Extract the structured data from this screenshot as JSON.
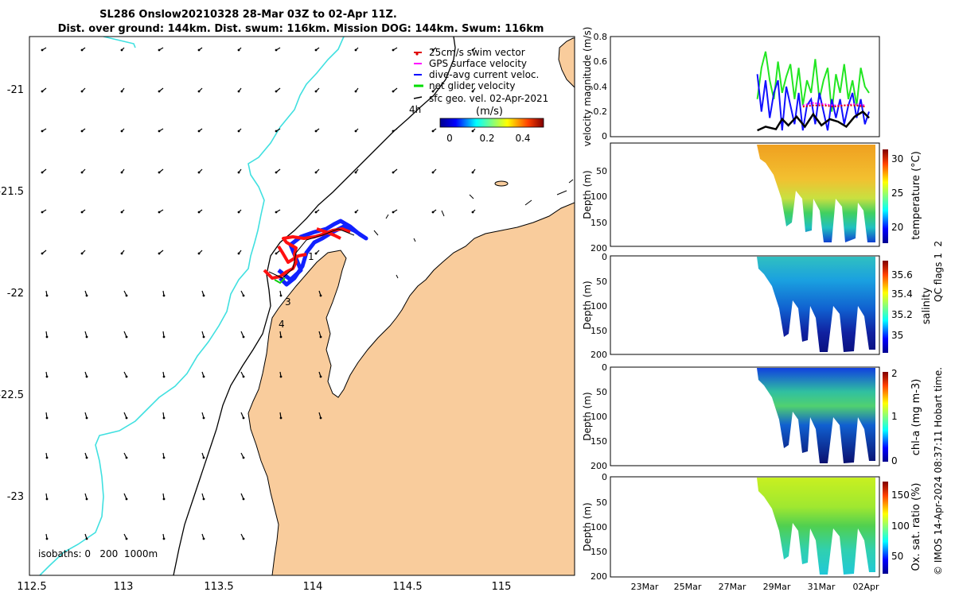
{
  "title": {
    "line1": "SL286 Onslow20210328 28-Mar 03Z to 02-Apr 11Z.",
    "line2": "Dist. over ground: 144km. Dist. swum: 116km. Mission DOG: 144km. Swum: 116km"
  },
  "map": {
    "xticks": [
      "112.5",
      "113",
      "113.5",
      "114",
      "114.5",
      "115"
    ],
    "yticks": [
      "-21",
      "-21.5",
      "-22",
      "-22.5",
      "-23"
    ],
    "legend": [
      {
        "label": "25cm/s swim vector",
        "color": "#e00000"
      },
      {
        "label": "GPS surface velocity",
        "color": "#ff00ff"
      },
      {
        "label": "dive-avg current veloc.",
        "color": "#0000ff"
      },
      {
        "label": "net glider velocity",
        "color": "#00dd00"
      },
      {
        "label": "sfc geo. vel. 02-Apr-2021",
        "color": "#000000"
      }
    ],
    "colorbar": {
      "label": "(m/s)",
      "ticks": [
        "0",
        "0.2",
        "0.4"
      ]
    },
    "annotations": [
      "4h",
      "1",
      "3",
      "4"
    ],
    "isobaths_text": "isobaths: 0   200  1000m",
    "land_color": "#f9cc9c",
    "coast_line_color": "#40e0e0"
  },
  "chart_data": [
    {
      "type": "line",
      "title": "velocity magnitude",
      "ylabel": "velocity magnitude (m/s)",
      "ylim": [
        0,
        0.8
      ],
      "yticks": [
        "0.8",
        "0.6",
        "0.4",
        "0.2",
        "0"
      ],
      "x_day_range": [
        21,
        34
      ],
      "series": [
        {
          "name": "net glider velocity",
          "color": "#22e622",
          "x": [
            28.1,
            28.3,
            28.5,
            28.7,
            28.9,
            29.1,
            29.3,
            29.5,
            29.7,
            29.9,
            30.1,
            30.3,
            30.5,
            30.7,
            30.9,
            31.1,
            31.3,
            31.5,
            31.7,
            31.9,
            32.1,
            32.3,
            32.5,
            32.7,
            32.9,
            33.1,
            33.3,
            33.5
          ],
          "values": [
            0.3,
            0.55,
            0.68,
            0.45,
            0.3,
            0.6,
            0.35,
            0.48,
            0.58,
            0.3,
            0.55,
            0.25,
            0.45,
            0.35,
            0.62,
            0.3,
            0.45,
            0.55,
            0.2,
            0.5,
            0.35,
            0.58,
            0.3,
            0.45,
            0.25,
            0.55,
            0.4,
            0.35
          ]
        },
        {
          "name": "dive-avg current veloc.",
          "color": "#1010ff",
          "x": [
            28.1,
            28.3,
            28.5,
            28.7,
            28.9,
            29.1,
            29.3,
            29.5,
            29.7,
            29.9,
            30.1,
            30.3,
            30.5,
            30.7,
            30.9,
            31.1,
            31.3,
            31.5,
            31.7,
            31.9,
            32.1,
            32.3,
            32.5,
            32.7,
            32.9,
            33.1,
            33.3,
            33.5
          ],
          "values": [
            0.5,
            0.2,
            0.45,
            0.15,
            0.35,
            0.45,
            0.05,
            0.4,
            0.25,
            0.1,
            0.35,
            0.05,
            0.25,
            0.3,
            0.1,
            0.35,
            0.2,
            0.05,
            0.3,
            0.15,
            0.3,
            0.1,
            0.25,
            0.35,
            0.15,
            0.3,
            0.1,
            0.2
          ]
        },
        {
          "name": "GPS surface velocity",
          "color": "#ff00ff",
          "x": [
            30.3,
            30.8,
            31.3,
            31.8,
            32.3,
            32.8,
            33.3
          ],
          "values": [
            0.25,
            0.27,
            0.26,
            0.25,
            0.25,
            0.26,
            0.25
          ]
        },
        {
          "name": "swim speed",
          "color": "#e00000",
          "x": [
            30.3,
            30.8,
            31.3,
            31.8,
            32.3,
            32.8,
            33.3
          ],
          "values": [
            0.24,
            0.25,
            0.25,
            0.24,
            0.25,
            0.25,
            0.24
          ]
        },
        {
          "name": "sfc geo. vel.",
          "color": "#000000",
          "x": [
            28.1,
            28.5,
            29.0,
            29.3,
            29.6,
            30.0,
            30.4,
            30.8,
            31.2,
            31.6,
            32.0,
            32.4,
            32.8,
            33.2,
            33.5
          ],
          "values": [
            0.05,
            0.08,
            0.06,
            0.14,
            0.09,
            0.16,
            0.08,
            0.18,
            0.09,
            0.14,
            0.12,
            0.08,
            0.16,
            0.2,
            0.15
          ]
        }
      ]
    },
    {
      "type": "heatmap",
      "title": "temperature",
      "ylabel": "Depth (m)",
      "clabel": "temperature (°C)",
      "clim": [
        18,
        31
      ],
      "cticks": [
        "30",
        "25",
        "20"
      ],
      "ylim": [
        0,
        200
      ],
      "yticks": [
        "50",
        "100",
        "150",
        "200"
      ]
    },
    {
      "type": "heatmap",
      "title": "salinity",
      "ylabel": "Depth (m)",
      "clabel": "salinity",
      "clim": [
        34.85,
        35.75
      ],
      "cticks": [
        "35.6",
        "35.4",
        "35.2",
        "35"
      ],
      "ylim": [
        0,
        200
      ],
      "yticks": [
        "0",
        "50",
        "100",
        "150",
        "200"
      ]
    },
    {
      "type": "heatmap",
      "title": "chl-a",
      "ylabel": "Depth (m)",
      "clabel": "chl-a (mg m-3)",
      "clim": [
        0,
        2
      ],
      "cticks": [
        "2",
        "1",
        "0"
      ],
      "ylim": [
        0,
        200
      ],
      "yticks": [
        "0",
        "50",
        "100",
        "150",
        "200"
      ]
    },
    {
      "type": "heatmap",
      "title": "Ox. sat. ratio",
      "ylabel": "Depth (m)",
      "clabel": "Ox. sat. ratio (%)",
      "clim": [
        20,
        175
      ],
      "cticks": [
        "150",
        "100",
        "50"
      ],
      "ylim": [
        0,
        200
      ],
      "yticks": [
        "0",
        "50",
        "100",
        "150",
        "200"
      ]
    }
  ],
  "time_axis": {
    "ticks": [
      "23Mar",
      "25Mar",
      "27Mar",
      "29Mar",
      "31Mar",
      "02Apr"
    ]
  },
  "side_text": "QC flags 1  2",
  "credit": "© IMOS 14-Apr-2024 08:37:11 Hobart time."
}
